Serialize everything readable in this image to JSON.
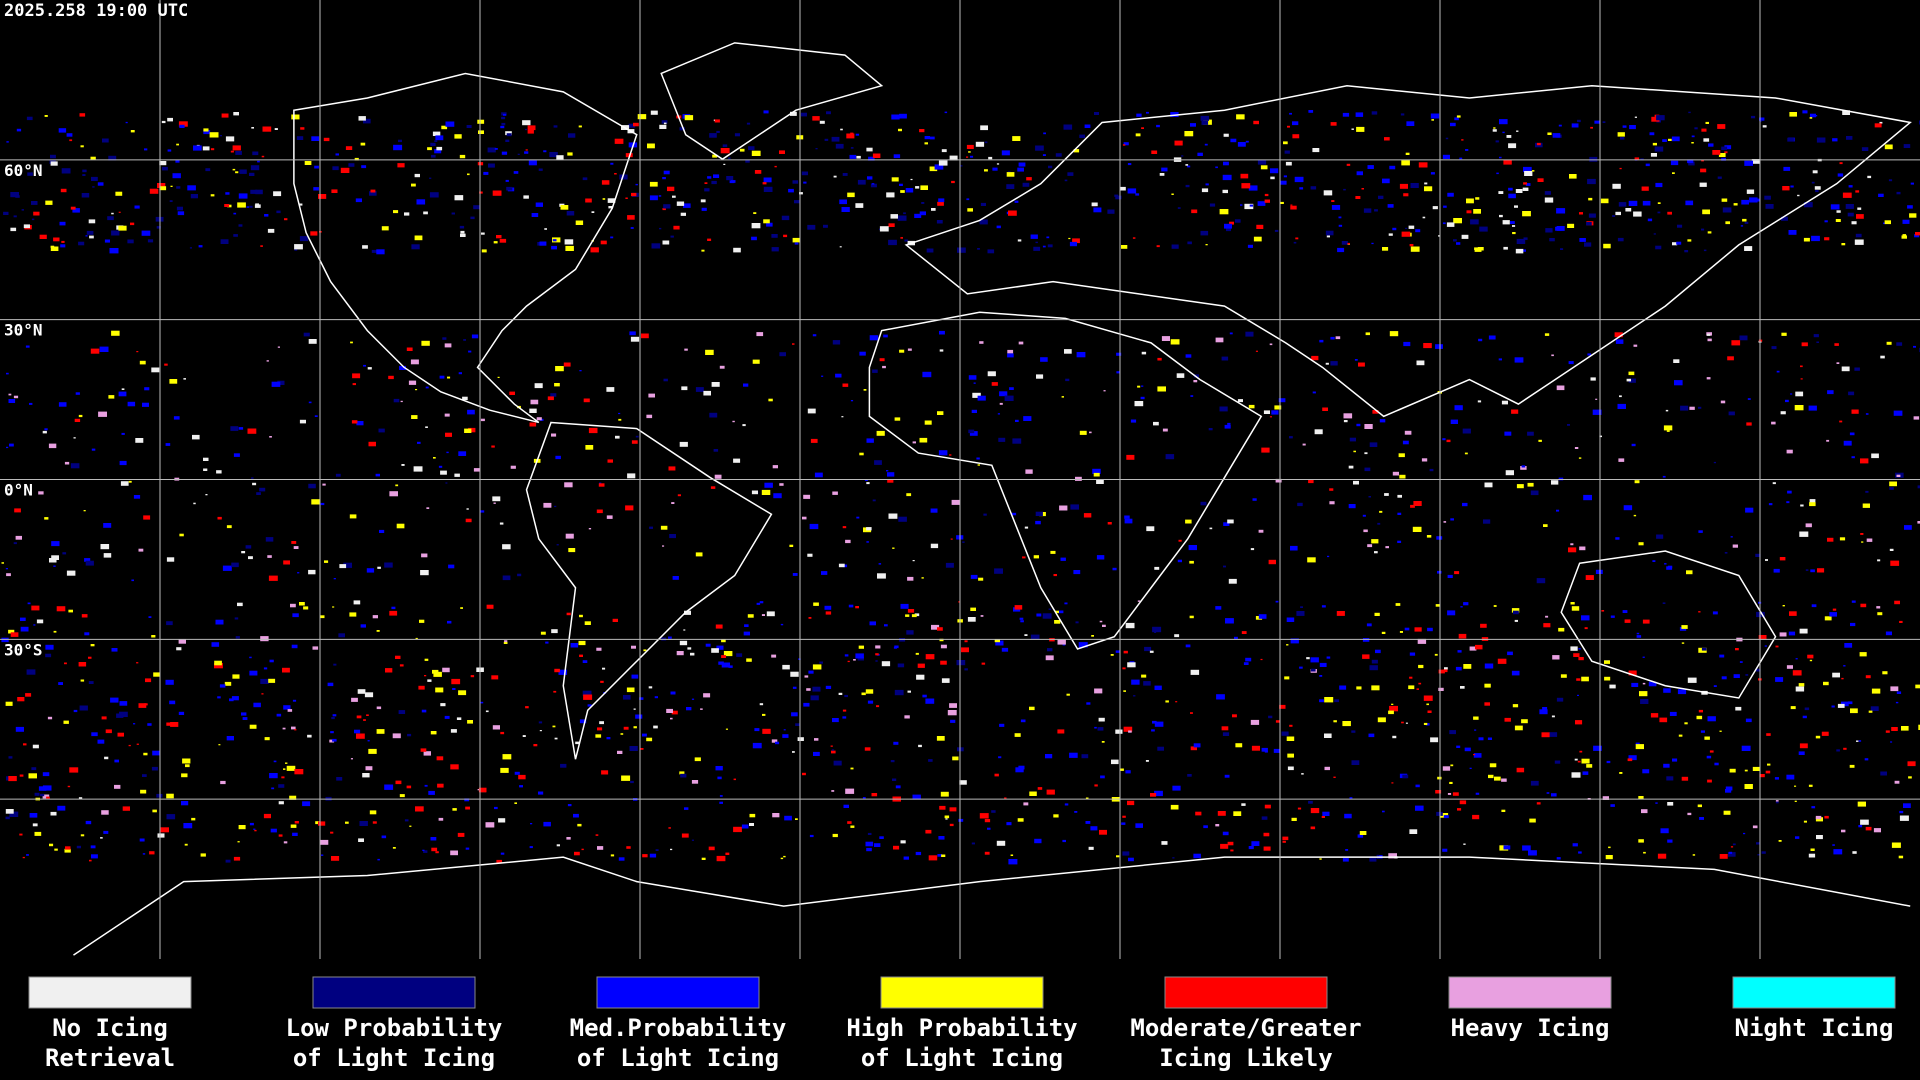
{
  "timestamp": "2025.258 19:00 UTC",
  "latitude_labels": [
    "60°N",
    "30°N",
    "0°N",
    "30°S"
  ],
  "legend": [
    {
      "lines": [
        "No Icing",
        "Retrieval"
      ],
      "color": "#f0f0f0"
    },
    {
      "lines": [
        "Low Probability",
        "of Light Icing"
      ],
      "color": "#000080"
    },
    {
      "lines": [
        "Med.Probability",
        "of Light Icing"
      ],
      "color": "#0000ff"
    },
    {
      "lines": [
        "High Probability",
        "of Light Icing"
      ],
      "color": "#ffff00"
    },
    {
      "lines": [
        "Moderate/Greater",
        "Icing Likely"
      ],
      "color": "#ff0000"
    },
    {
      "lines": [
        "Heavy Icing"
      ],
      "color": "#e8a0e0"
    },
    {
      "lines": [
        "Night Icing"
      ],
      "color": "#00ffff"
    }
  ]
}
